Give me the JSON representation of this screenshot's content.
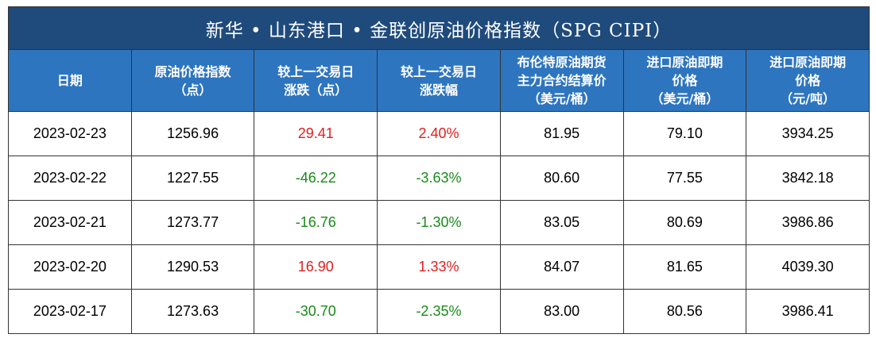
{
  "title": "新华 • 山东港口 • 金联创原油价格指数（SPG CIPI）",
  "table": {
    "headers": [
      [
        "日期"
      ],
      [
        "原油价格指数",
        "（点）"
      ],
      [
        "较上一交易日",
        "涨跌（点）"
      ],
      [
        "较上一交易日",
        "涨跌幅"
      ],
      [
        "布伦特原油期货",
        "主力合约结算价",
        "（美元/桶）"
      ],
      [
        "进口原油即期",
        "价格",
        "（美元/桶）"
      ],
      [
        "进口原油即期",
        "价格",
        "（元/吨）"
      ]
    ],
    "rows": [
      [
        "2023-02-23",
        "1256.96",
        "29.41",
        "2.40%",
        "81.95",
        "79.10",
        "3934.25"
      ],
      [
        "2023-02-22",
        "1227.55",
        "-46.22",
        "-3.63%",
        "80.60",
        "77.55",
        "3842.18"
      ],
      [
        "2023-02-21",
        "1273.77",
        "-16.76",
        "-1.30%",
        "83.05",
        "80.69",
        "3986.86"
      ],
      [
        "2023-02-20",
        "1290.53",
        "16.90",
        "1.33%",
        "84.07",
        "81.65",
        "4039.30"
      ],
      [
        "2023-02-17",
        "1273.63",
        "-30.70",
        "-2.35%",
        "83.00",
        "80.56",
        "3986.41"
      ]
    ]
  }
}
